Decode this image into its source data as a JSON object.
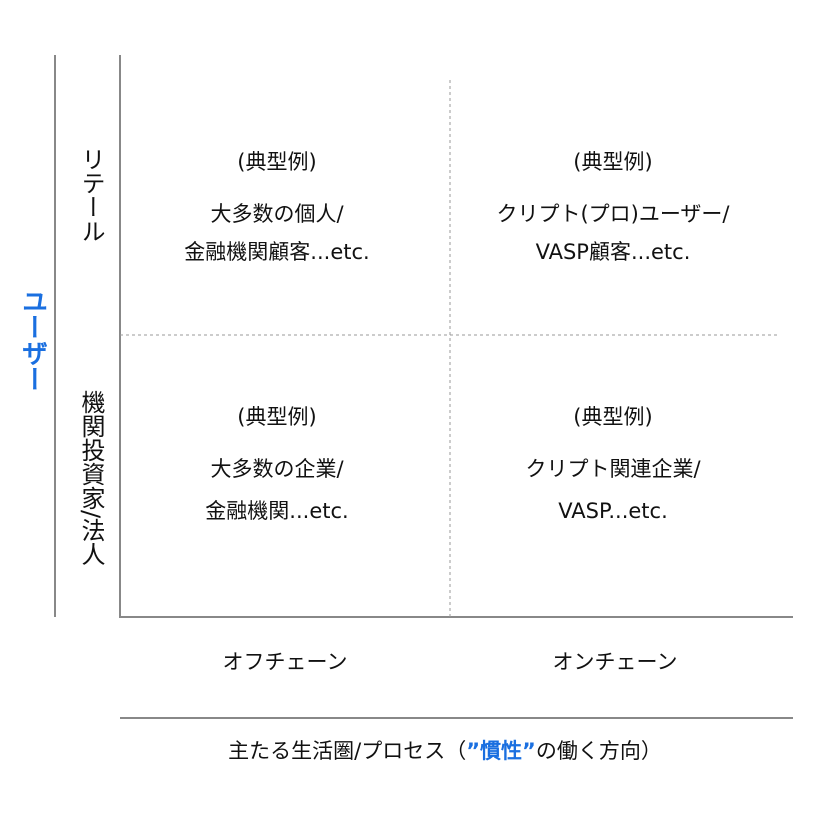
{
  "y_axis": {
    "title": "ユーザー"
  },
  "rows": [
    {
      "label": "リテール"
    },
    {
      "label": "機関投資家/法人"
    }
  ],
  "columns": [
    {
      "label": "オフチェーン"
    },
    {
      "label": "オンチェーン"
    }
  ],
  "cells": [
    [
      {
        "heading": "(典型例)",
        "lines": [
          "大多数の個人/",
          "金融機関顧客...etc."
        ]
      },
      {
        "heading": "(典型例)",
        "lines": [
          "クリプト(プロ)ユーザー/",
          "VASP顧客...etc."
        ]
      }
    ],
    [
      {
        "heading": "(典型例)",
        "lines": [
          "大多数の企業/",
          "金融機関...etc."
        ]
      },
      {
        "heading": "(典型例)",
        "lines": [
          "クリプト関連企業/",
          "VASP...etc."
        ]
      }
    ]
  ],
  "x_axis": {
    "title_parts": [
      "主たる生活圏/プロセス（",
      "”慣性”",
      "の働く方向）"
    ]
  }
}
